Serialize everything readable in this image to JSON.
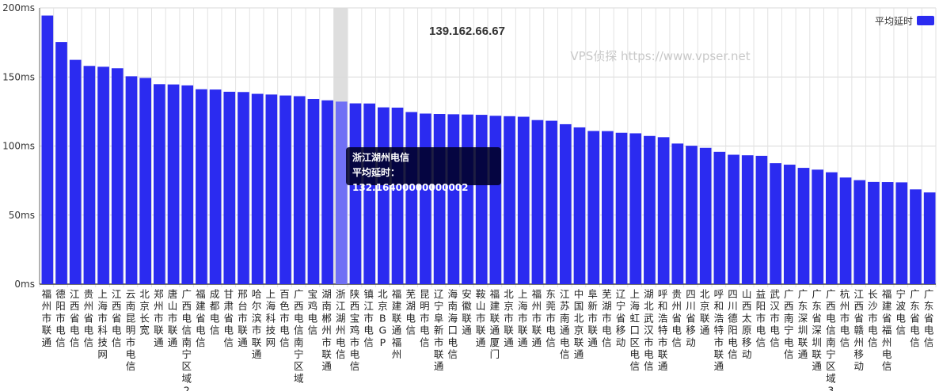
{
  "chart_data": {
    "type": "bar",
    "title": "139.162.66.67",
    "watermark": "VPS侦探 https://www.vpser.net",
    "ylim": [
      0,
      200
    ],
    "yticks": [
      "0ms",
      "50ms",
      "100ms",
      "150ms",
      "200ms"
    ],
    "grid": true,
    "legend": {
      "position": "top-right",
      "label": "平均延时"
    },
    "bar_color": "#2b2bf0",
    "highlight_color": "#7070f5",
    "series": [
      {
        "name": "平均延时",
        "values": [
          194.5,
          175.3,
          162.4,
          158.0,
          157.4,
          156.3,
          150.5,
          149.3,
          144.8,
          144.6,
          143.9,
          141.1,
          140.9,
          139.3,
          139.1,
          137.8,
          137.3,
          136.6,
          136.1,
          134.1,
          133.1,
          132.164,
          130.9,
          130.8,
          128.0,
          127.8,
          124.6,
          123.5,
          123.2,
          123.0,
          122.8,
          122.6,
          121.9,
          121.6,
          121.2,
          118.8,
          118.3,
          115.8,
          113.5,
          110.9,
          110.8,
          109.6,
          109.2,
          107.3,
          106.4,
          101.8,
          100.2,
          98.7,
          95.8,
          93.7,
          93.3,
          92.9,
          87.6,
          86.5,
          84.2,
          82.9,
          81.0,
          77.2,
          75.3,
          74.0,
          73.9,
          73.7,
          68.6,
          66.4
        ]
      }
    ],
    "categories": [
      "福州市联通",
      "德阳市电信",
      "江西省电信",
      "贵州省电信",
      "上海市科技网",
      "江西省电信",
      "云南昆明市电信",
      "北京长宽",
      "郑州市联通",
      "唐山市联通",
      "广西电信南宁区域2",
      "福建省电信",
      "成都电信",
      "甘肃省电信",
      "邢台市联通",
      "哈尔滨市联通",
      "上海科技网",
      "百色市电信",
      "广西电信南宁区域",
      "宝鸡电信",
      "湖南郴州市联通",
      "浙江湖州电信",
      "陕西宝鸡市电信",
      "镇江市电信",
      "北京BGP",
      "福建联通福州",
      "芜湖电信",
      "昆明市电信",
      "辽宁阜新市联通",
      "海南海口电信",
      "安徽联通",
      "鞍山市联通",
      "福建联通厦门",
      "北京市联通",
      "上海市联通",
      "福州市联通",
      "东莞市电信",
      "江苏南通电信",
      "中国北京联通",
      "阜新市联通",
      "芜湖市电信",
      "辽宁省移动",
      "上海虹口区电信",
      "湖北武汉市电信",
      "呼和浩特市联通",
      "贵州省电信",
      "四川省移动",
      "北京联通",
      "呼和浩特市联通",
      "四川德阳电信",
      "山西太原移动",
      "益阳市电信",
      "武汉市电信",
      "广西南宁电信",
      "广东深圳联通",
      "广东省深圳联通",
      "广西电信南宁区域3",
      "杭州市电信",
      "江西省赣州移动",
      "长沙市电信",
      "福建省福州电信",
      "宁波电信",
      "广东省电信",
      "广东省电信"
    ],
    "tooltip": {
      "index": 21,
      "title": "浙江湖州电信",
      "label": "平均延时",
      "value": "132.16400000000002"
    }
  }
}
